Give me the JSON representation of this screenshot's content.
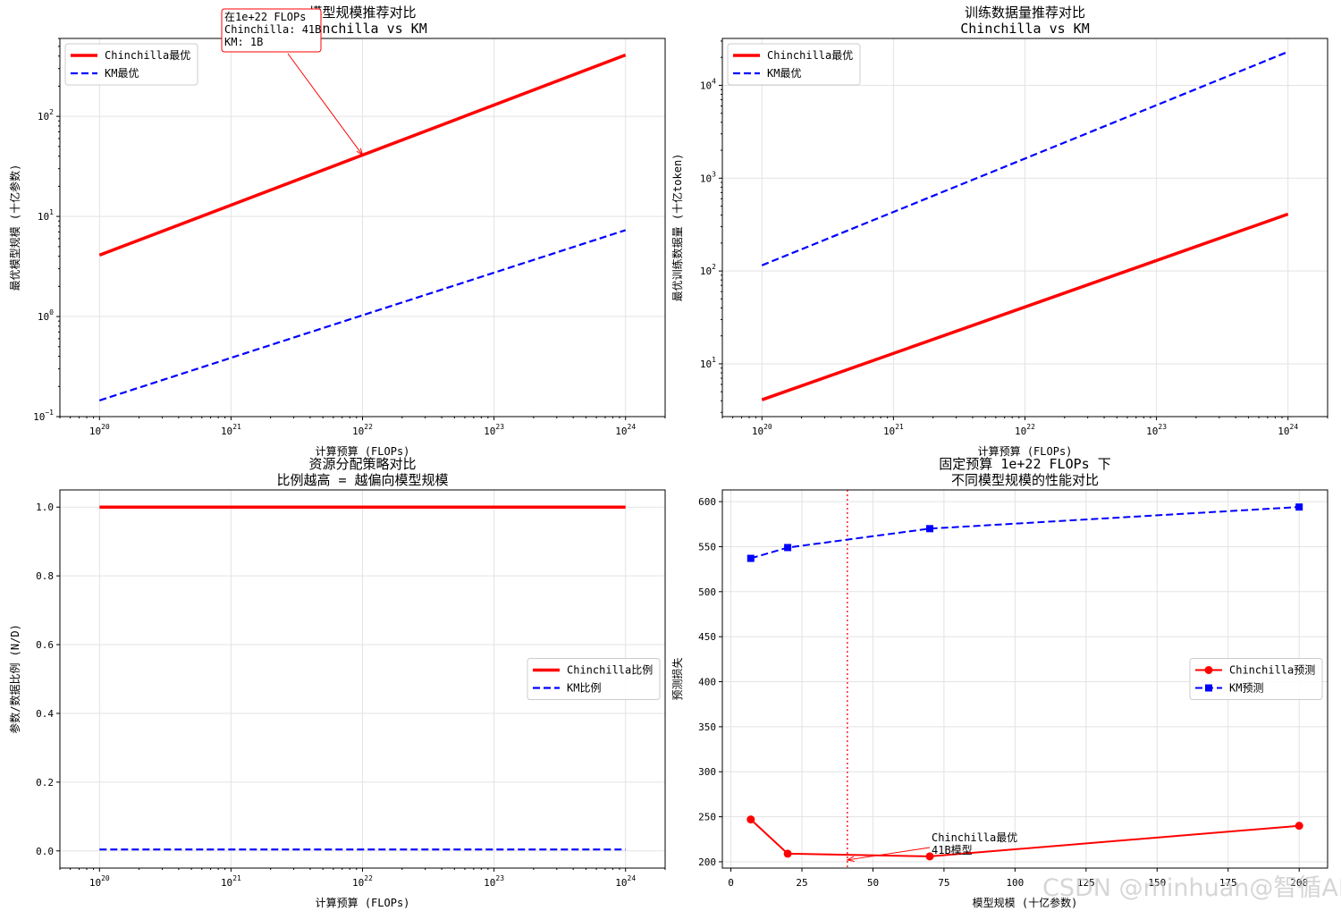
{
  "chart_data": [
    {
      "type": "line",
      "log_x": true,
      "log_y": true,
      "title": [
        "模型规模推荐对比",
        "Chinchilla vs KM"
      ],
      "xlabel": "计算预算 (FLOPs)",
      "ylabel": "最优模型规模 (十亿参数)",
      "xlim": [
        5e+19,
        2e+24
      ],
      "ylim": [
        0.1,
        600
      ],
      "xticks": [
        {
          "v": 1e+20,
          "base": "10",
          "exp": "20"
        },
        {
          "v": 1e+21,
          "base": "10",
          "exp": "21"
        },
        {
          "v": 1e+22,
          "base": "10",
          "exp": "22"
        },
        {
          "v": 1e+23,
          "base": "10",
          "exp": "23"
        },
        {
          "v": 1e+24,
          "base": "10",
          "exp": "24"
        }
      ],
      "yticks": [
        {
          "v": 0.1,
          "base": "10",
          "exp": "−1"
        },
        {
          "v": 1,
          "base": "10",
          "exp": "0"
        },
        {
          "v": 10,
          "base": "10",
          "exp": "1"
        },
        {
          "v": 100,
          "base": "10",
          "exp": "2"
        }
      ],
      "series": [
        {
          "name": "Chinchilla最优",
          "color": "#ff0000",
          "dash": "solid",
          "width": 3.5,
          "x": [
            1e+20,
            1e+24
          ],
          "y": [
            4.1,
            410
          ]
        },
        {
          "name": "KM最优",
          "color": "#0000ff",
          "dash": "dashed",
          "width": 2.2,
          "x": [
            1e+20,
            1e+24
          ],
          "y": [
            0.145,
            7.3
          ]
        }
      ],
      "legend": {
        "position": "upper-left"
      },
      "annotations": [
        {
          "text": [
            "在1e+22 FLOPs",
            "Chinchilla: 41B",
            "KM: 1B"
          ],
          "target_x": 1e+22,
          "target_y": 41,
          "color": "#ff0000",
          "boxed": true
        }
      ]
    },
    {
      "type": "line",
      "log_x": true,
      "log_y": true,
      "title": [
        "训练数据量推荐对比",
        "Chinchilla vs KM"
      ],
      "xlabel": "计算预算 (FLOPs)",
      "ylabel": "最优训练数据量 (十亿token)",
      "xlim": [
        5e+19,
        2e+24
      ],
      "ylim": [
        2.7,
        32000
      ],
      "xticks": [
        {
          "v": 1e+20,
          "base": "10",
          "exp": "20"
        },
        {
          "v": 1e+21,
          "base": "10",
          "exp": "21"
        },
        {
          "v": 1e+22,
          "base": "10",
          "exp": "22"
        },
        {
          "v": 1e+23,
          "base": "10",
          "exp": "23"
        },
        {
          "v": 1e+24,
          "base": "10",
          "exp": "24"
        }
      ],
      "yticks": [
        {
          "v": 10,
          "base": "10",
          "exp": "1"
        },
        {
          "v": 100,
          "base": "10",
          "exp": "2"
        },
        {
          "v": 1000,
          "base": "10",
          "exp": "3"
        },
        {
          "v": 10000,
          "base": "10",
          "exp": "4"
        }
      ],
      "series": [
        {
          "name": "Chinchilla最优",
          "color": "#ff0000",
          "dash": "solid",
          "width": 3.5,
          "x": [
            1e+20,
            1e+24
          ],
          "y": [
            4.1,
            410
          ]
        },
        {
          "name": "KM最优",
          "color": "#0000ff",
          "dash": "dashed",
          "width": 2.2,
          "x": [
            1e+20,
            1e+24
          ],
          "y": [
            115,
            23000
          ]
        }
      ],
      "legend": {
        "position": "upper-left"
      },
      "annotations": []
    },
    {
      "type": "line",
      "log_x": true,
      "log_y": false,
      "title": [
        "资源分配策略对比",
        "比例越高 = 越偏向模型规模"
      ],
      "xlabel": "计算预算 (FLOPs)",
      "ylabel": "参数/数据比例 (N/D)",
      "xlim": [
        5e+19,
        2e+24
      ],
      "ylim": [
        -0.05,
        1.05
      ],
      "xticks": [
        {
          "v": 1e+20,
          "base": "10",
          "exp": "20"
        },
        {
          "v": 1e+21,
          "base": "10",
          "exp": "21"
        },
        {
          "v": 1e+22,
          "base": "10",
          "exp": "22"
        },
        {
          "v": 1e+23,
          "base": "10",
          "exp": "23"
        },
        {
          "v": 1e+24,
          "base": "10",
          "exp": "24"
        }
      ],
      "yticks": [
        {
          "v": 0.0,
          "label": "0.0"
        },
        {
          "v": 0.2,
          "label": "0.2"
        },
        {
          "v": 0.4,
          "label": "0.4"
        },
        {
          "v": 0.6,
          "label": "0.6"
        },
        {
          "v": 0.8,
          "label": "0.8"
        },
        {
          "v": 1.0,
          "label": "1.0"
        }
      ],
      "series": [
        {
          "name": "Chinchilla比例",
          "color": "#ff0000",
          "dash": "solid",
          "width": 3.5,
          "x": [
            1e+20,
            1e+24
          ],
          "y": [
            1.0,
            1.0
          ]
        },
        {
          "name": "KM比例",
          "color": "#0000ff",
          "dash": "dashed",
          "width": 2.2,
          "x": [
            1e+20,
            1e+24
          ],
          "y": [
            0.004,
            0.004
          ]
        }
      ],
      "legend": {
        "position": "center-right"
      },
      "annotations": []
    },
    {
      "type": "line",
      "log_x": false,
      "log_y": false,
      "title": [
        "固定预算 1e+22 FLOPs 下",
        "不同模型规模的性能对比"
      ],
      "xlabel": "模型规模 (十亿参数)",
      "ylabel": "预测损失",
      "xlim": [
        -3,
        210
      ],
      "ylim": [
        193,
        613
      ],
      "xticks": [
        {
          "v": 0,
          "label": "0"
        },
        {
          "v": 25,
          "label": "25"
        },
        {
          "v": 50,
          "label": "50"
        },
        {
          "v": 75,
          "label": "75"
        },
        {
          "v": 100,
          "label": "100"
        },
        {
          "v": 125,
          "label": "125"
        },
        {
          "v": 150,
          "label": "150"
        },
        {
          "v": 175,
          "label": "175"
        },
        {
          "v": 200,
          "label": "200"
        }
      ],
      "yticks": [
        {
          "v": 200,
          "label": "200"
        },
        {
          "v": 250,
          "label": "250"
        },
        {
          "v": 300,
          "label": "300"
        },
        {
          "v": 350,
          "label": "350"
        },
        {
          "v": 400,
          "label": "400"
        },
        {
          "v": 450,
          "label": "450"
        },
        {
          "v": 500,
          "label": "500"
        },
        {
          "v": 550,
          "label": "550"
        },
        {
          "v": 600,
          "label": "600"
        }
      ],
      "series": [
        {
          "name": "Chinchilla预测",
          "color": "#ff0000",
          "dash": "solid",
          "width": 2,
          "marker": "circle",
          "x": [
            7,
            20,
            70,
            200
          ],
          "y": [
            247,
            209,
            206,
            240
          ]
        },
        {
          "name": "KM预测",
          "color": "#0000ff",
          "dash": "dashed",
          "width": 2,
          "marker": "square",
          "x": [
            7,
            20,
            70,
            200
          ],
          "y": [
            537,
            549,
            570,
            594
          ]
        }
      ],
      "vline": {
        "x": 41,
        "color": "#ff0000",
        "style": "dotted"
      },
      "legend": {
        "position": "center-right"
      },
      "annotations": [
        {
          "text": [
            "Chinchilla最优",
            "41B模型"
          ],
          "target_x": 41,
          "target_y": 202,
          "color": "#ff0000",
          "boxed": false
        }
      ]
    }
  ],
  "watermark": "CSDN @minhuan@智循AI"
}
